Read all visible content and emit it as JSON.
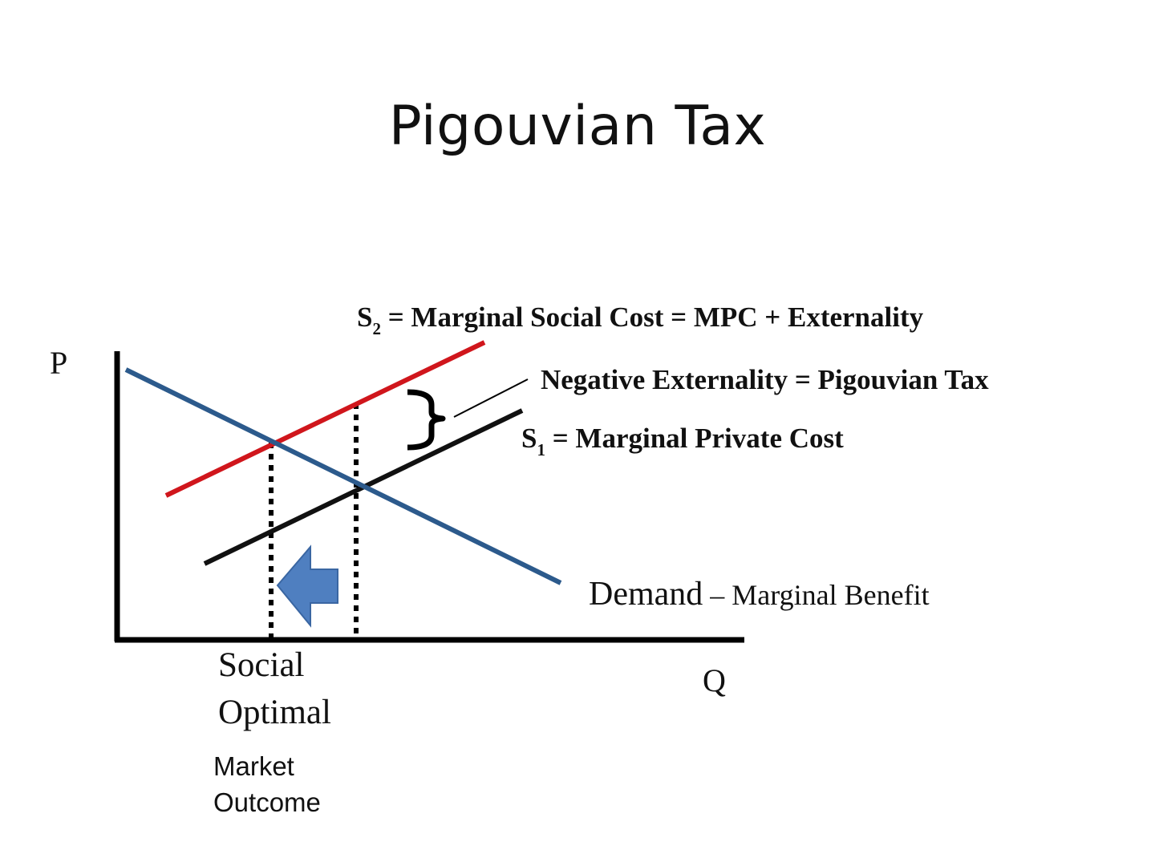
{
  "title": "Pigouvian Tax",
  "labels": {
    "p_axis": "P",
    "q_axis": "Q",
    "s2_main": "S",
    "s2_sub": "2",
    "s2_rest": " = Marginal Social Cost = MPC + Externality",
    "neg_ext": "Negative Externality = Pigouvian Tax",
    "s1_main": "S",
    "s1_sub": "1",
    "s1_rest": " = Marginal Private Cost",
    "demand": "Demand",
    "demand_rest": " – Marginal Benefit",
    "social_line1": "Social",
    "social_line2": "Optimal",
    "market_line1": "Market",
    "market_line2": "Outcome"
  },
  "colors": {
    "mpc_line": "#111111",
    "msc_line": "#d0161c",
    "demand_line": "#2c5a8c",
    "arrow_fill": "#4f7fc0",
    "arrow_stroke": "#3a66a2"
  },
  "icons": {
    "shift_arrow": "left-arrow-icon",
    "brace": "right-brace-icon"
  }
}
